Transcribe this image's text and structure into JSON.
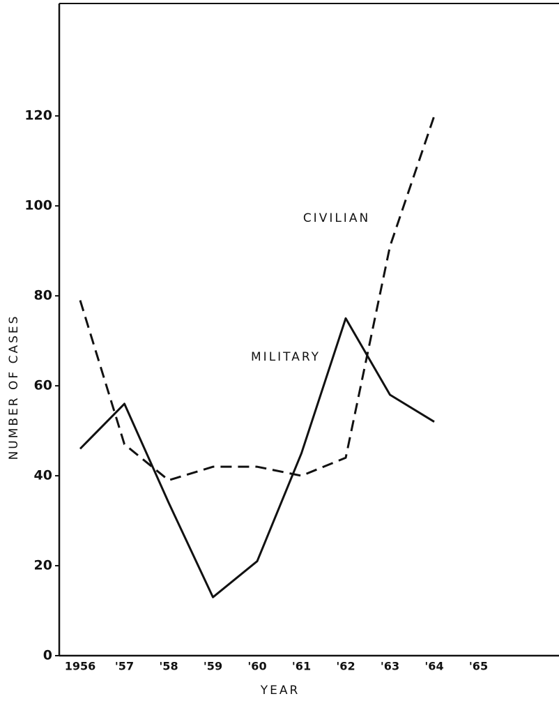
{
  "chart_data": {
    "type": "line",
    "x_label": "YEAR",
    "y_label": "NUMBER OF CASES",
    "categories": [
      "1956",
      "'57",
      "'58",
      "'59",
      "'60",
      "'61",
      "'62",
      "'63",
      "'64",
      "'65"
    ],
    "series": [
      {
        "name": "MILITARY",
        "color": "#111111",
        "style": "solid",
        "values": [
          46,
          56,
          34,
          13,
          21,
          45,
          75,
          58,
          52,
          null
        ]
      },
      {
        "name": "CIVILIAN",
        "color": "#111111",
        "style": "dashed",
        "values": [
          79,
          47,
          39,
          42,
          42,
          40,
          44,
          91,
          120,
          null
        ]
      }
    ],
    "ylim": [
      0,
      145
    ],
    "yticks": [
      0,
      20,
      40,
      60,
      80,
      100,
      120
    ]
  }
}
